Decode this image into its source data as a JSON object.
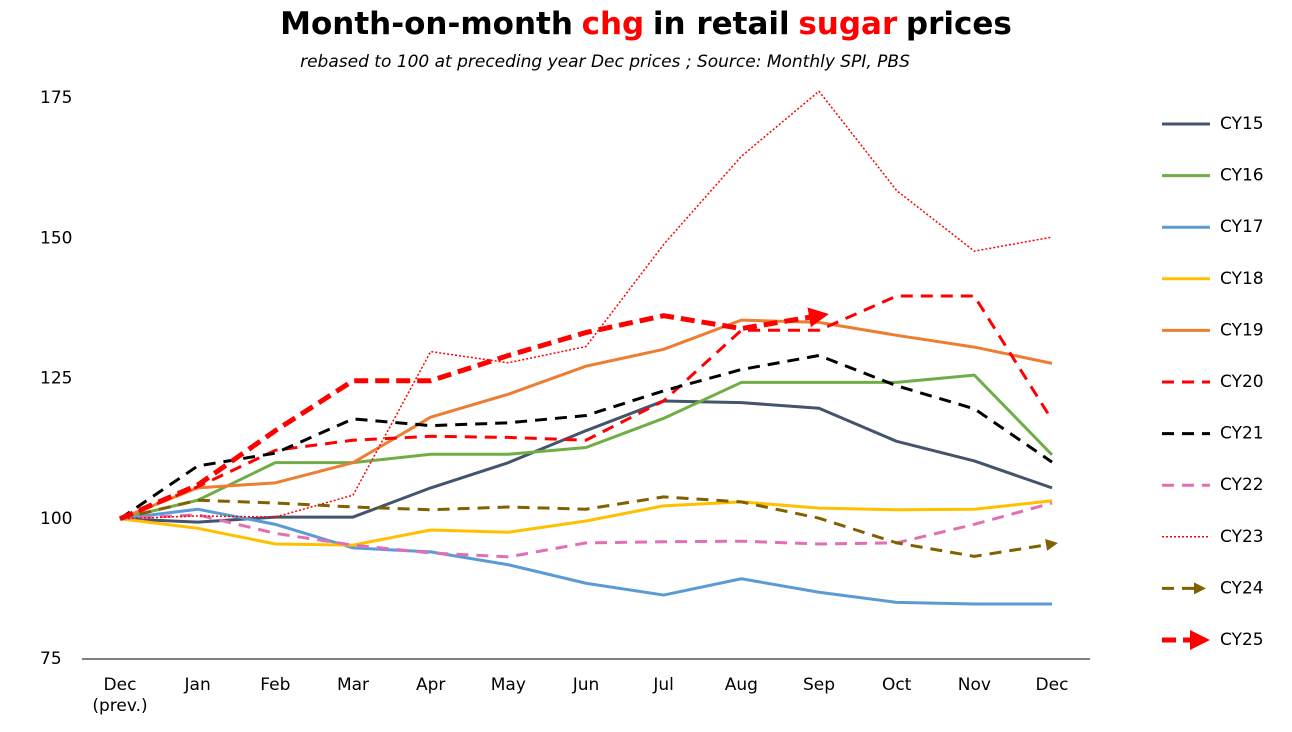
{
  "chart_data": {
    "type": "line",
    "title": [
      {
        "text": "Month-on-month",
        "color": "#000000"
      },
      {
        "text": "chg",
        "color": "#ff0000"
      },
      {
        "text": "in retail",
        "color": "#000000"
      },
      {
        "text": "sugar",
        "color": "#ff0000"
      },
      {
        "text": "prices",
        "color": "#000000"
      }
    ],
    "subtitle": "rebased to 100 at preceding year Dec prices ; Source: Monthly SPI, PBS",
    "categories": [
      "Dec (prev.)",
      "Jan",
      "Feb",
      "Mar",
      "Apr",
      "May",
      "Jun",
      "Jul",
      "Aug",
      "Sep",
      "Oct",
      "Nov",
      "Dec"
    ],
    "ylim": [
      75,
      175
    ],
    "yticks": [
      75,
      100,
      125,
      150,
      175
    ],
    "grid": false,
    "legend": "right",
    "series": [
      {
        "name": "CY15",
        "color": "#44546a",
        "line_style": "solid",
        "values": [
          100,
          99.4,
          100.3,
          100.3,
          105.5,
          110,
          115.7,
          121,
          120.7,
          119.7,
          113.8,
          110.3,
          105.5
        ]
      },
      {
        "name": "CY16",
        "color": "#70ad47",
        "line_style": "solid",
        "values": [
          100,
          103.3,
          110,
          110,
          111.5,
          111.5,
          112.7,
          117.9,
          124.3,
          124.3,
          124.3,
          125.6,
          111.4
        ]
      },
      {
        "name": "CY17",
        "color": "#5b9bd5",
        "line_style": "solid",
        "values": [
          100,
          101.7,
          99,
          94.8,
          94.1,
          91.8,
          88.5,
          86.4,
          89.3,
          86.9,
          85.1,
          84.8,
          84.8
        ]
      },
      {
        "name": "CY18",
        "color": "#ffc000",
        "line_style": "solid",
        "values": [
          100,
          98.3,
          95.5,
          95.3,
          98,
          97.6,
          99.6,
          102.3,
          103,
          101.9,
          101.6,
          101.7,
          103.2
        ]
      },
      {
        "name": "CY19",
        "color": "#ed7d31",
        "line_style": "solid",
        "values": [
          100,
          105.5,
          106.4,
          110,
          118.1,
          122.2,
          127.2,
          130.2,
          135.4,
          135,
          132.7,
          130.6,
          127.7
        ]
      },
      {
        "name": "CY20",
        "color": "#ff0000",
        "line_style": "dashed",
        "values": [
          100,
          105.7,
          112.2,
          114,
          114.7,
          114.5,
          114,
          121,
          133.6,
          133.6,
          139.7,
          139.7,
          117.6
        ]
      },
      {
        "name": "CY21",
        "color": "#000000",
        "line_style": "dashed",
        "values": [
          100,
          109.4,
          111.7,
          117.8,
          116.6,
          117.1,
          118.4,
          122.8,
          126.6,
          129.1,
          123.7,
          119.6,
          110.1
        ]
      },
      {
        "name": "CY22",
        "color": "#e26fb4",
        "line_style": "dashed",
        "values": [
          100,
          100.7,
          97.4,
          95.3,
          93.9,
          93.2,
          95.7,
          95.9,
          96,
          95.5,
          95.7,
          99,
          102.8
        ]
      },
      {
        "name": "CY23",
        "color": "#ff0000",
        "line_style": "dotted",
        "values": [
          100,
          100.5,
          100.3,
          104.2,
          129.8,
          127.8,
          130.7,
          148.9,
          164.6,
          176.2,
          158.5,
          147.7,
          150.2
        ]
      },
      {
        "name": "CY24",
        "color": "#806000",
        "line_style": "dashed",
        "marker": "arrow",
        "values": [
          100,
          103.3,
          102.8,
          102.1,
          101.6,
          102.1,
          101.7,
          103.9,
          103,
          100.1,
          95.7,
          93.3,
          95.5
        ]
      },
      {
        "name": "CY25",
        "color": "#ff0000",
        "line_style": "thick-dashed",
        "marker": "arrow",
        "values": [
          100,
          106,
          115.7,
          124.6,
          124.6,
          129.1,
          133.2,
          136.2,
          133.9,
          136.2,
          null,
          null,
          null
        ]
      }
    ]
  }
}
